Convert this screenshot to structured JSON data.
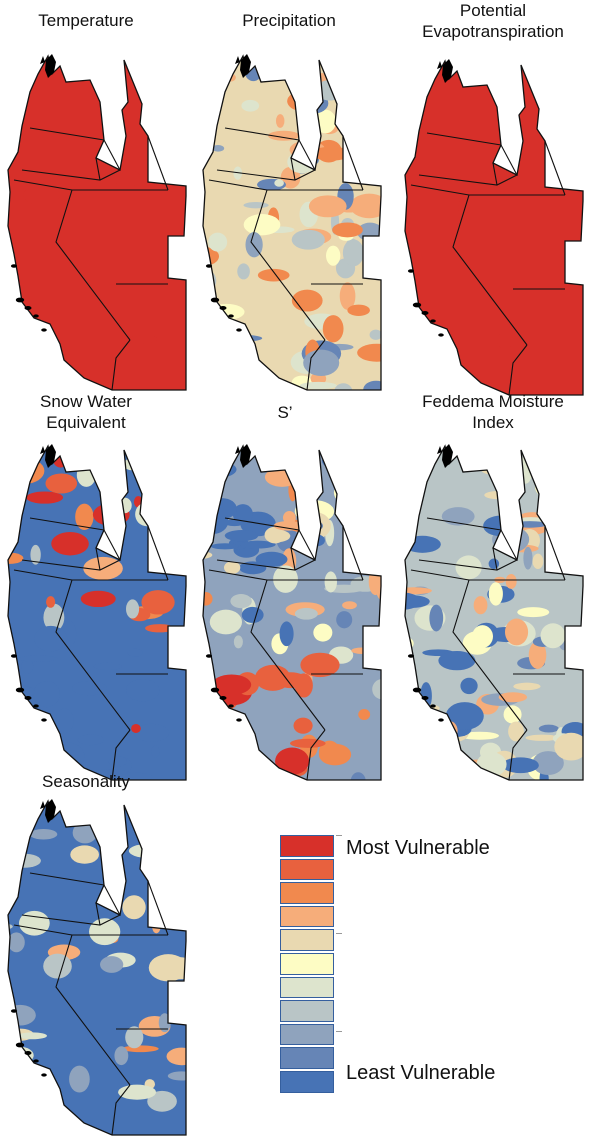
{
  "panels": [
    {
      "id": "temperature",
      "title_lines": [
        "Temperature"
      ],
      "style": "solid-red"
    },
    {
      "id": "precipitation",
      "title_lines": [
        "Precipitation"
      ],
      "style": "mixed-yellow"
    },
    {
      "id": "pet",
      "title_lines": [
        "Potential",
        "Evapotranspiration"
      ],
      "style": "solid-red"
    },
    {
      "id": "swe",
      "title_lines": [
        "Snow Water",
        "Equivalent"
      ],
      "style": "blue-red-patches"
    },
    {
      "id": "s-prime",
      "title_lines": [
        "S’"
      ],
      "style": "red-south"
    },
    {
      "id": "feddema",
      "title_lines": [
        "Feddema Moisture",
        "Index"
      ],
      "style": "blue-yellow"
    },
    {
      "id": "seasonality",
      "title_lines": [
        "Seasonality"
      ],
      "style": "blue-orange-patches"
    }
  ],
  "legend": {
    "top_label": "Most Vulnerable",
    "bottom_label": "Least Vulnerable",
    "colors": [
      "#d7302a",
      "#e8613e",
      "#f1894e",
      "#f6ad7a",
      "#e9d9b1",
      "#fdfcc4",
      "#dde4cd",
      "#b9c5c6",
      "#8fa3bd",
      "#6685b6",
      "#4773b5"
    ]
  },
  "colors": {
    "red": "#d7302a",
    "blue": "#4773b5",
    "border": "#111111"
  }
}
